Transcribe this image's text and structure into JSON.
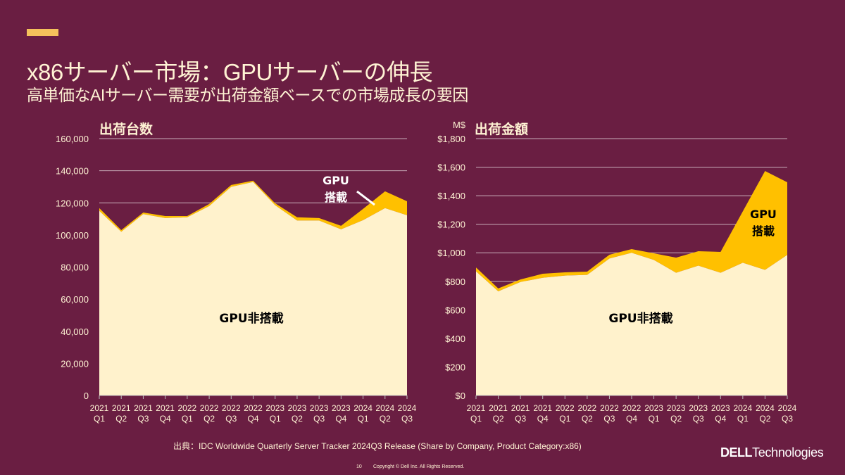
{
  "slide": {
    "title": "x86サーバー市場：GPUサーバーの伸長",
    "subtitle": "高単価なAIサーバー需要が出荷金額ベースでの市場成長の要因",
    "source": "出典：IDC Worldwide Quarterly Server Tracker 2024Q3 Release (Share by Company, Product Category:x86)",
    "page_number": "10",
    "copyright": "Copyright © Dell Inc. All Rights Reserved.",
    "logo": {
      "dell": "DELL",
      "technologies": "Technologies"
    }
  },
  "colors": {
    "background": "#6a1e42",
    "accent": "#f5c15c",
    "gpu_area": "#ffc000",
    "non_gpu_area": "#fff2cc",
    "text": "#fff3d4"
  },
  "chart_data": [
    {
      "type": "area",
      "stacked": true,
      "title": "出荷台数",
      "unit_label": "",
      "categories": [
        [
          "2021",
          "Q1"
        ],
        [
          "2021",
          "Q2"
        ],
        [
          "2021",
          "Q3"
        ],
        [
          "2021",
          "Q4"
        ],
        [
          "2022",
          "Q1"
        ],
        [
          "2022",
          "Q2"
        ],
        [
          "2022",
          "Q3"
        ],
        [
          "2022",
          "Q4"
        ],
        [
          "2023",
          "Q1"
        ],
        [
          "2023",
          "Q2"
        ],
        [
          "2023",
          "Q3"
        ],
        [
          "2023",
          "Q4"
        ],
        [
          "2024",
          "Q1"
        ],
        [
          "2024",
          "Q2"
        ],
        [
          "2024",
          "Q3"
        ]
      ],
      "series": [
        {
          "name": "GPU非搭載",
          "values": [
            115000,
            102000,
            113000,
            110500,
            111000,
            118000,
            130000,
            133000,
            118500,
            109000,
            109000,
            103500,
            109200,
            116700,
            112300
          ]
        },
        {
          "name": "GPU搭載",
          "values": [
            1700,
            1000,
            1000,
            1300,
            800,
            1300,
            1100,
            800,
            1200,
            2000,
            1500,
            2200,
            7000,
            10500,
            8700
          ]
        }
      ],
      "ylim": [
        0,
        160000
      ],
      "yticks": [
        "0",
        "20,000",
        "40,000",
        "60,000",
        "80,000",
        "100,000",
        "120,000",
        "140,000",
        "160,000"
      ],
      "ytick_values": [
        0,
        20000,
        40000,
        60000,
        80000,
        100000,
        120000,
        140000,
        160000
      ],
      "grid": true,
      "annotations": {
        "inner_label": "GPU非搭載",
        "gpu_label_line1": "GPU",
        "gpu_label_line2": "搭載"
      }
    },
    {
      "type": "area",
      "stacked": true,
      "title": "出荷金額",
      "unit_label": "M$",
      "categories": [
        [
          "2021",
          "Q1"
        ],
        [
          "2021",
          "Q2"
        ],
        [
          "2021",
          "Q3"
        ],
        [
          "2021",
          "Q4"
        ],
        [
          "2022",
          "Q1"
        ],
        [
          "2022",
          "Q2"
        ],
        [
          "2022",
          "Q3"
        ],
        [
          "2022",
          "Q4"
        ],
        [
          "2023",
          "Q1"
        ],
        [
          "2023",
          "Q2"
        ],
        [
          "2023",
          "Q3"
        ],
        [
          "2023",
          "Q4"
        ],
        [
          "2024",
          "Q1"
        ],
        [
          "2024",
          "Q2"
        ],
        [
          "2024",
          "Q3"
        ]
      ],
      "series": [
        {
          "name": "GPU非搭載",
          "values": [
            870,
            730,
            795,
            825,
            840,
            845,
            960,
            1000,
            950,
            860,
            910,
            860,
            930,
            880,
            985
          ]
        },
        {
          "name": "GPU搭載",
          "values": [
            27,
            20,
            18,
            28,
            23,
            23,
            26,
            26,
            46,
            106,
            101,
            146,
            360,
            693,
            509
          ]
        }
      ],
      "ylim": [
        0,
        1800
      ],
      "yticks": [
        "$0",
        "$200",
        "$400",
        "$600",
        "$800",
        "$1,000",
        "$1,200",
        "$1,400",
        "$1,600",
        "$1,800"
      ],
      "ytick_values": [
        0,
        200,
        400,
        600,
        800,
        1000,
        1200,
        1400,
        1600,
        1800
      ],
      "grid": true,
      "annotations": {
        "inner_label": "GPU非搭載",
        "gpu_label_line1": "GPU",
        "gpu_label_line2": "搭載"
      }
    }
  ]
}
